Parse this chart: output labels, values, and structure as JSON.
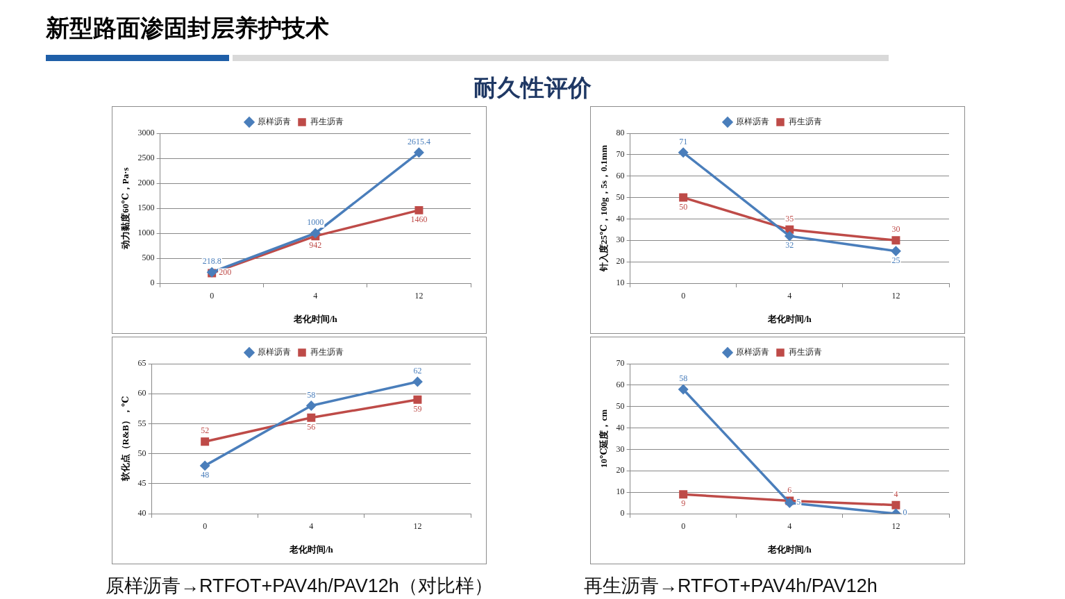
{
  "chart_data": [
    {
      "type": "line",
      "categories": [
        "0",
        "4",
        "12"
      ],
      "xlabel": "老化时间/h",
      "ylabel": "动力黏度60℃，Pa·s",
      "ylim": [
        0,
        3000
      ],
      "yticks": [
        0,
        500,
        1000,
        1500,
        2000,
        2500,
        3000
      ],
      "grid": "y",
      "legend": "top",
      "data_labels": true,
      "series": [
        {
          "name": "原样沥青",
          "color": "#4a7ebb",
          "marker": "diamond",
          "values": [
            218.8,
            1000,
            2615.4
          ]
        },
        {
          "name": "再生沥青",
          "color": "#be4b48",
          "marker": "square",
          "values": [
            200,
            942,
            1460
          ]
        }
      ]
    },
    {
      "type": "line",
      "categories": [
        "0",
        "4",
        "12"
      ],
      "xlabel": "老化时间/h",
      "ylabel": "针入度25℃，100g，5s，0.1mm",
      "ylim": [
        10,
        80
      ],
      "yticks": [
        10,
        20,
        30,
        40,
        50,
        60,
        70,
        80
      ],
      "grid": "y",
      "legend": "top",
      "data_labels": true,
      "series": [
        {
          "name": "原样沥青",
          "color": "#4a7ebb",
          "marker": "diamond",
          "values": [
            71,
            32,
            25
          ]
        },
        {
          "name": "再生沥青",
          "color": "#be4b48",
          "marker": "square",
          "values": [
            50,
            35,
            30
          ]
        }
      ]
    },
    {
      "type": "line",
      "categories": [
        "0",
        "4",
        "12"
      ],
      "xlabel": "老化时间/h",
      "ylabel": "软化点（R&B），℃",
      "ylim": [
        40,
        65
      ],
      "yticks": [
        40,
        45,
        50,
        55,
        60,
        65
      ],
      "grid": "y",
      "legend": "top",
      "data_labels": true,
      "annotations": [
        "原样沥青→RTFOT+PAV4h/PAV12h（对比样）"
      ],
      "series": [
        {
          "name": "原样沥青",
          "color": "#4a7ebb",
          "marker": "diamond",
          "values": [
            48,
            58,
            62
          ]
        },
        {
          "name": "再生沥青",
          "color": "#be4b48",
          "marker": "square",
          "values": [
            52,
            56,
            59
          ]
        }
      ]
    },
    {
      "type": "line",
      "categories": [
        "0",
        "4",
        "12"
      ],
      "xlabel": "老化时间/h",
      "ylabel": "10℃延度，cm",
      "ylim": [
        0,
        70
      ],
      "yticks": [
        0,
        10,
        20,
        30,
        40,
        50,
        60,
        70
      ],
      "grid": "y",
      "legend": "top",
      "data_labels": true,
      "annotations": [
        "再生沥青→RTFOT+PAV4h/PAV12h"
      ],
      "series": [
        {
          "name": "原样沥青",
          "color": "#4a7ebb",
          "marker": "diamond",
          "values": [
            58,
            5,
            0
          ]
        },
        {
          "name": "再生沥青",
          "color": "#be4b48",
          "marker": "square",
          "values": [
            9,
            6,
            4
          ]
        }
      ]
    },
    {
      "type": "other",
      "title": "新型路面渗固封层养护技术",
      "subtitle": "耐久性评价"
    }
  ]
}
